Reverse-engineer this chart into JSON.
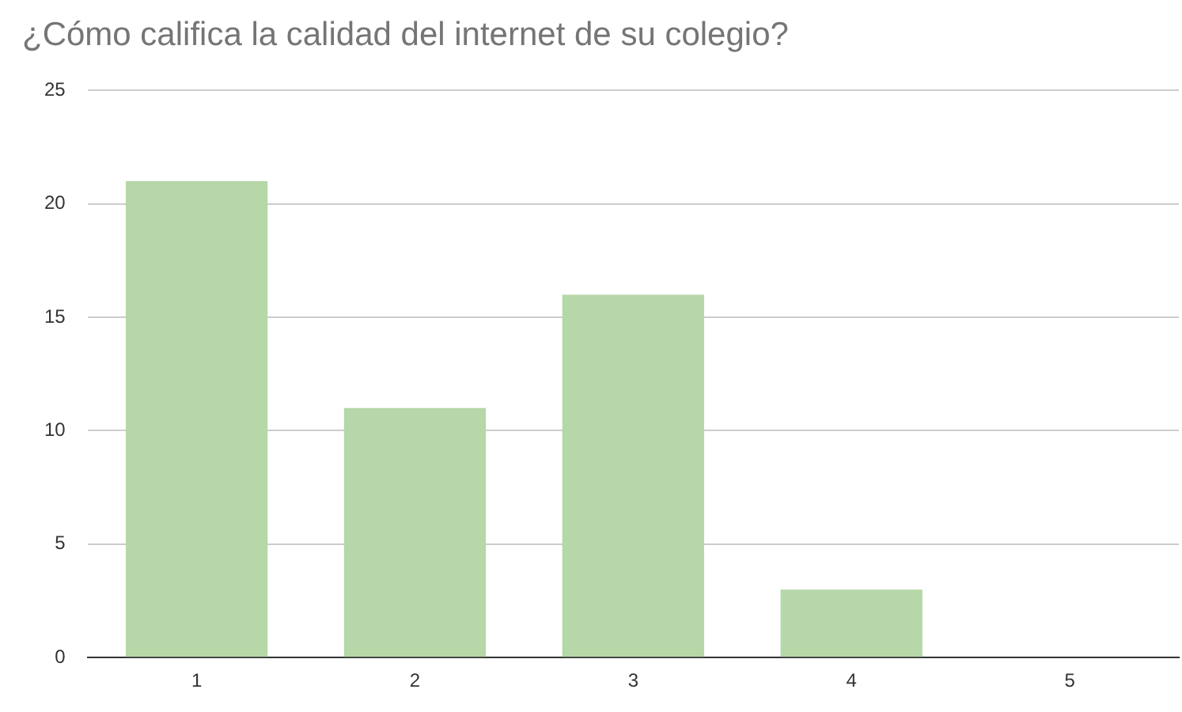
{
  "chart_data": {
    "type": "bar",
    "title": "¿Cómo califica la calidad del internet de su colegio?",
    "categories": [
      "1",
      "2",
      "3",
      "4",
      "5"
    ],
    "values": [
      21,
      11,
      16,
      3,
      0
    ],
    "color": "#b6d7a8",
    "ylim": [
      0,
      25
    ],
    "yticks": [
      0,
      5,
      10,
      15,
      20,
      25
    ],
    "grid": "y"
  }
}
